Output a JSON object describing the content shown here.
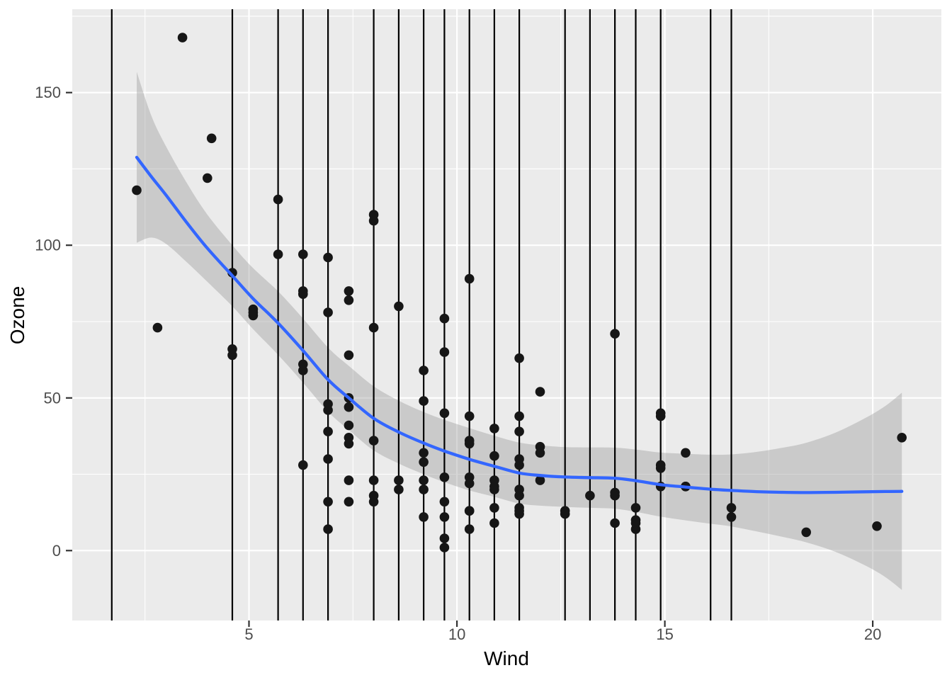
{
  "chart_data": {
    "type": "scatter",
    "title": "",
    "xlabel": "Wind",
    "ylabel": "Ozone",
    "xlim": [
      0.75,
      21.65
    ],
    "ylim": [
      -22.9,
      177.3
    ],
    "x_major_ticks": [
      5,
      10,
      15,
      20
    ],
    "x_tick_labels": [
      "5",
      "10",
      "15",
      "20"
    ],
    "x_minor_ticks": [
      2.5,
      7.5,
      12.5,
      17.5
    ],
    "y_major_ticks": [
      0,
      50,
      100,
      150
    ],
    "y_tick_labels": [
      "0",
      "50",
      "100",
      "150"
    ],
    "y_minor_ticks": [
      25,
      75,
      125,
      175
    ],
    "grid": "white major and minor gridlines on gray panel (ggplot theme_grey)",
    "legend": "none",
    "points": [
      [
        7.4,
        41
      ],
      [
        8,
        36
      ],
      [
        12.6,
        12
      ],
      [
        11.5,
        18
      ],
      [
        14.9,
        28
      ],
      [
        8.6,
        23
      ],
      [
        13.8,
        19
      ],
      [
        20.1,
        8
      ],
      [
        6.9,
        7
      ],
      [
        9.7,
        16
      ],
      [
        9.2,
        11
      ],
      [
        10.9,
        14
      ],
      [
        13.2,
        18
      ],
      [
        11.5,
        14
      ],
      [
        12,
        34
      ],
      [
        18.4,
        6
      ],
      [
        11.5,
        30
      ],
      [
        9.7,
        11
      ],
      [
        9.7,
        1
      ],
      [
        16.6,
        11
      ],
      [
        9.7,
        4
      ],
      [
        12,
        32
      ],
      [
        12,
        23
      ],
      [
        14.9,
        45
      ],
      [
        5.7,
        115
      ],
      [
        7.4,
        37
      ],
      [
        9.2,
        29
      ],
      [
        13.8,
        71
      ],
      [
        11.5,
        39
      ],
      [
        8,
        23
      ],
      [
        14.9,
        21
      ],
      [
        20.7,
        37
      ],
      [
        9.2,
        20
      ],
      [
        11.5,
        12
      ],
      [
        10.3,
        13
      ],
      [
        4.1,
        135
      ],
      [
        9.2,
        49
      ],
      [
        9.2,
        32
      ],
      [
        4.6,
        64
      ],
      [
        10.9,
        40
      ],
      [
        5.1,
        77
      ],
      [
        6.3,
        97
      ],
      [
        5.7,
        97
      ],
      [
        7.4,
        85
      ],
      [
        14.3,
        10
      ],
      [
        14.9,
        27
      ],
      [
        14.3,
        7
      ],
      [
        6.9,
        48
      ],
      [
        10.3,
        35
      ],
      [
        6.3,
        61
      ],
      [
        5.1,
        79
      ],
      [
        11.5,
        63
      ],
      [
        6.9,
        16
      ],
      [
        8.6,
        80
      ],
      [
        8,
        108
      ],
      [
        8.6,
        20
      ],
      [
        12,
        52
      ],
      [
        7.4,
        82
      ],
      [
        7.4,
        50
      ],
      [
        7.4,
        64
      ],
      [
        9.2,
        59
      ],
      [
        6.9,
        39
      ],
      [
        13.8,
        9
      ],
      [
        7.4,
        16
      ],
      [
        6.9,
        78
      ],
      [
        7.4,
        35
      ],
      [
        4.6,
        66
      ],
      [
        4,
        122
      ],
      [
        10.3,
        89
      ],
      [
        8,
        110
      ],
      [
        11.5,
        44
      ],
      [
        11.5,
        28
      ],
      [
        9.7,
        65
      ],
      [
        10.3,
        22
      ],
      [
        6.3,
        59
      ],
      [
        7.4,
        23
      ],
      [
        10.9,
        31
      ],
      [
        10.3,
        44
      ],
      [
        15.5,
        21
      ],
      [
        14.3,
        9
      ],
      [
        9.7,
        45
      ],
      [
        3.4,
        168
      ],
      [
        8,
        73
      ],
      [
        9.7,
        76
      ],
      [
        2.3,
        118
      ],
      [
        6.3,
        84
      ],
      [
        6.3,
        85
      ],
      [
        6.9,
        96
      ],
      [
        5.1,
        78
      ],
      [
        2.8,
        73
      ],
      [
        4.6,
        91
      ],
      [
        7.4,
        47
      ],
      [
        15.5,
        32
      ],
      [
        10.9,
        20
      ],
      [
        10.9,
        23
      ],
      [
        10.9,
        21
      ],
      [
        9.7,
        24
      ],
      [
        14.9,
        44
      ],
      [
        15.5,
        21
      ],
      [
        6.3,
        28
      ],
      [
        10.9,
        9
      ],
      [
        11.5,
        13
      ],
      [
        6.9,
        46
      ],
      [
        13.8,
        18
      ],
      [
        10.3,
        13
      ],
      [
        10.3,
        24
      ],
      [
        8,
        16
      ],
      [
        12.6,
        13
      ],
      [
        9.2,
        23
      ],
      [
        10.3,
        36
      ],
      [
        10.3,
        7
      ],
      [
        16.6,
        14
      ],
      [
        6.9,
        30
      ],
      [
        14.3,
        14
      ],
      [
        8,
        18
      ],
      [
        11.5,
        20
      ]
    ],
    "vlines": [
      1.7,
      4.6,
      5.7,
      6.3,
      6.9,
      8.0,
      8.6,
      9.2,
      9.7,
      10.3,
      10.9,
      11.5,
      12.6,
      13.2,
      13.8,
      14.3,
      14.9,
      16.1,
      16.6
    ],
    "smooth": {
      "method": "loess",
      "x": [
        2.3,
        2.65,
        3.0,
        3.5,
        4.0,
        4.6,
        5.1,
        5.7,
        6.3,
        6.9,
        7.4,
        8.0,
        8.6,
        9.2,
        9.7,
        10.3,
        10.9,
        11.5,
        12.0,
        12.6,
        13.2,
        13.8,
        14.3,
        14.9,
        15.5,
        16.1,
        16.6,
        17.2,
        17.8,
        18.4,
        19.1,
        19.8,
        20.3,
        20.7
      ],
      "fit": [
        128.8,
        122.5,
        116.5,
        107.5,
        99.0,
        90.0,
        82.5,
        74.5,
        65.5,
        56.0,
        50.0,
        43.3,
        38.8,
        35.2,
        32.6,
        29.9,
        27.6,
        25.4,
        24.6,
        24.1,
        23.9,
        23.7,
        22.9,
        21.6,
        20.8,
        20.1,
        19.7,
        19.3,
        19.1,
        19.0,
        19.1,
        19.25,
        19.35,
        19.4
      ],
      "ci_margin": [
        28.0,
        20.0,
        16.0,
        13.0,
        11.0,
        10.0,
        10.0,
        10.4,
        10.5,
        10.5,
        10.5,
        10.5,
        10.3,
        10.2,
        10.2,
        10.2,
        10.0,
        10.0,
        9.9,
        9.8,
        9.9,
        10.0,
        10.2,
        10.5,
        10.9,
        11.3,
        11.8,
        13.0,
        14.5,
        16.3,
        19.5,
        24.0,
        28.0,
        32.3
      ]
    },
    "colors": {
      "figure_bg": "#FFFFFF",
      "panel_bg": "#EBEBEB",
      "grid": "#FFFFFF",
      "point": "#161616",
      "vline": "#000000",
      "smooth_line": "#3366FF",
      "ribbon_fill": "#999999",
      "ribbon_opacity": 0.4,
      "tick_mark": "#333333",
      "tick_label": "#4D4D4D",
      "axis_title": "#000000"
    }
  }
}
